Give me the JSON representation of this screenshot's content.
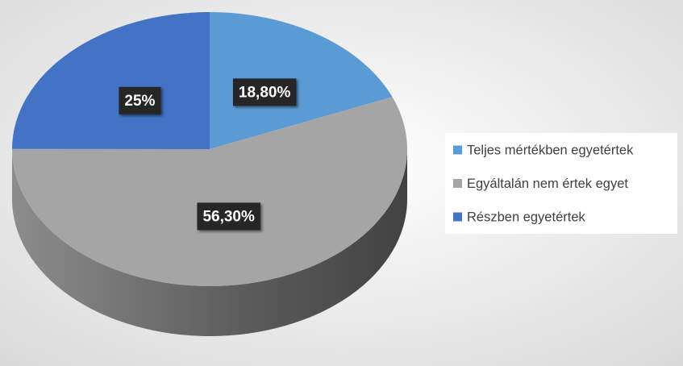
{
  "chart_data": {
    "type": "pie",
    "categories": [
      "Teljes mértékben egyetértek",
      "Egyáltalán nem értek egyet",
      "Részben egyetértek"
    ],
    "values": [
      18.8,
      56.3,
      25
    ],
    "value_labels": [
      "18,80%",
      "56,30%",
      "25%"
    ],
    "colors": [
      "#5b9bd5",
      "#a5a5a5",
      "#4472c4"
    ],
    "legend": "right"
  }
}
